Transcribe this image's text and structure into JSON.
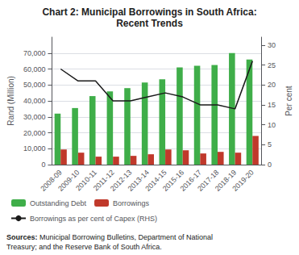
{
  "chart_data": {
    "type": "bar",
    "title": "Chart 2: Municipal Borrowings in South Africa:",
    "subtitle": "Recent Trends",
    "categories": [
      "2008-09",
      "2009-10",
      "2010-11",
      "2011-12",
      "2012-13",
      "2013-14",
      "2014-15",
      "2015-16",
      "2016-17",
      "2017-18",
      "2018-19",
      "2019-20"
    ],
    "series": [
      {
        "name": "Outstanding Debt",
        "type": "bar",
        "color": "#3fae49",
        "values": [
          32000,
          35500,
          43000,
          46000,
          48000,
          51500,
          53500,
          61000,
          62000,
          62500,
          70000,
          66000
        ]
      },
      {
        "name": "Borrowings",
        "type": "bar",
        "color": "#c0392b",
        "values": [
          9500,
          7500,
          5000,
          5000,
          5500,
          6500,
          9500,
          9000,
          7000,
          8000,
          7500,
          18000
        ]
      },
      {
        "name": "Borrowings as per cent of Capex (RHS)",
        "type": "line",
        "color": "#1a1a1a",
        "axis": "y2",
        "values": [
          24,
          21,
          21,
          16,
          16,
          17,
          18,
          17,
          15,
          15,
          14,
          26
        ]
      }
    ],
    "ylabel": "Rand (Million)",
    "y2label": "Per cent",
    "ylim": [
      0,
      80000
    ],
    "yticks": [
      0,
      {
        "value": 10000,
        "label": "10,000"
      },
      {
        "value": 20000,
        "label": "20,000"
      },
      {
        "value": 30000,
        "label": "30,000"
      },
      {
        "value": 40000,
        "label": "40,000"
      },
      {
        "value": 50000,
        "label": "50,000"
      },
      {
        "value": 60000,
        "label": "60,000"
      },
      {
        "value": 70000,
        "label": "70,000"
      }
    ],
    "y2lim": [
      0,
      32
    ],
    "y2ticks": [
      0,
      5,
      10,
      15,
      20,
      25,
      30
    ],
    "grid": true,
    "legend": "bottom",
    "annotations": [
      "Sources:",
      "Municipal Borrowing Bulletins, Department of National\nTreasury; and the Reserve Bank of South Africa."
    ]
  }
}
